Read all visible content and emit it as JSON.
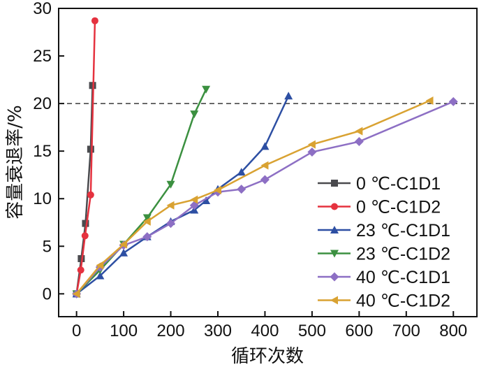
{
  "chart_data": {
    "type": "line",
    "xlabel": "循环次数",
    "ylabel": "容量衰退率/%",
    "xlim": [
      -38,
      850
    ],
    "ylim": [
      -2.4,
      30
    ],
    "xticks": [
      0,
      100,
      200,
      300,
      400,
      500,
      600,
      700,
      800
    ],
    "yticks": [
      0,
      5,
      10,
      15,
      20,
      25,
      30
    ],
    "grid": false,
    "legend": "bottom-right",
    "reference_line": {
      "y": 20,
      "style": "dashed"
    },
    "series": [
      {
        "name": "0 ℃-C1D1",
        "color": "#4a4a4e",
        "marker": "square",
        "x": [
          0,
          10,
          19,
          30,
          34
        ],
        "y": [
          0,
          3.7,
          7.4,
          15.2,
          21.9
        ]
      },
      {
        "name": "0 ℃-C1D2",
        "color": "#e5323f",
        "marker": "circle",
        "x": [
          0,
          9,
          18,
          30,
          39
        ],
        "y": [
          0,
          2.5,
          6.1,
          10.4,
          28.7
        ]
      },
      {
        "name": "23 ℃-C1D1",
        "color": "#2d4fa3",
        "marker": "triangle-up",
        "x": [
          0,
          50,
          100,
          150,
          200,
          250,
          275,
          300,
          350,
          400,
          450
        ],
        "y": [
          0,
          1.9,
          4.3,
          6,
          7.6,
          8.8,
          9.8,
          11,
          12.8,
          15.5,
          20.8
        ]
      },
      {
        "name": "23 ℃-C1D2",
        "color": "#3b9040",
        "marker": "triangle-down",
        "x": [
          0,
          50,
          100,
          150,
          200,
          250,
          275
        ],
        "y": [
          0,
          2.5,
          5.2,
          8,
          11.5,
          18.9,
          21.5
        ]
      },
      {
        "name": "40 ℃-C1D1",
        "color": "#8d6fc4",
        "marker": "diamond",
        "x": [
          0,
          50,
          100,
          150,
          200,
          250,
          300,
          350,
          400,
          500,
          600,
          800
        ],
        "y": [
          0,
          2.8,
          5.1,
          6,
          7.4,
          9.3,
          10.7,
          11,
          12,
          14.9,
          16,
          20.2
        ]
      },
      {
        "name": "40 ℃-C1D2",
        "color": "#d9a232",
        "marker": "triangle-left",
        "x": [
          0,
          50,
          100,
          150,
          200,
          250,
          300,
          400,
          500,
          600,
          750
        ],
        "y": [
          0,
          3,
          5.2,
          7.6,
          9.3,
          9.9,
          10.9,
          13.5,
          15.7,
          17.1,
          20.3
        ]
      }
    ]
  }
}
